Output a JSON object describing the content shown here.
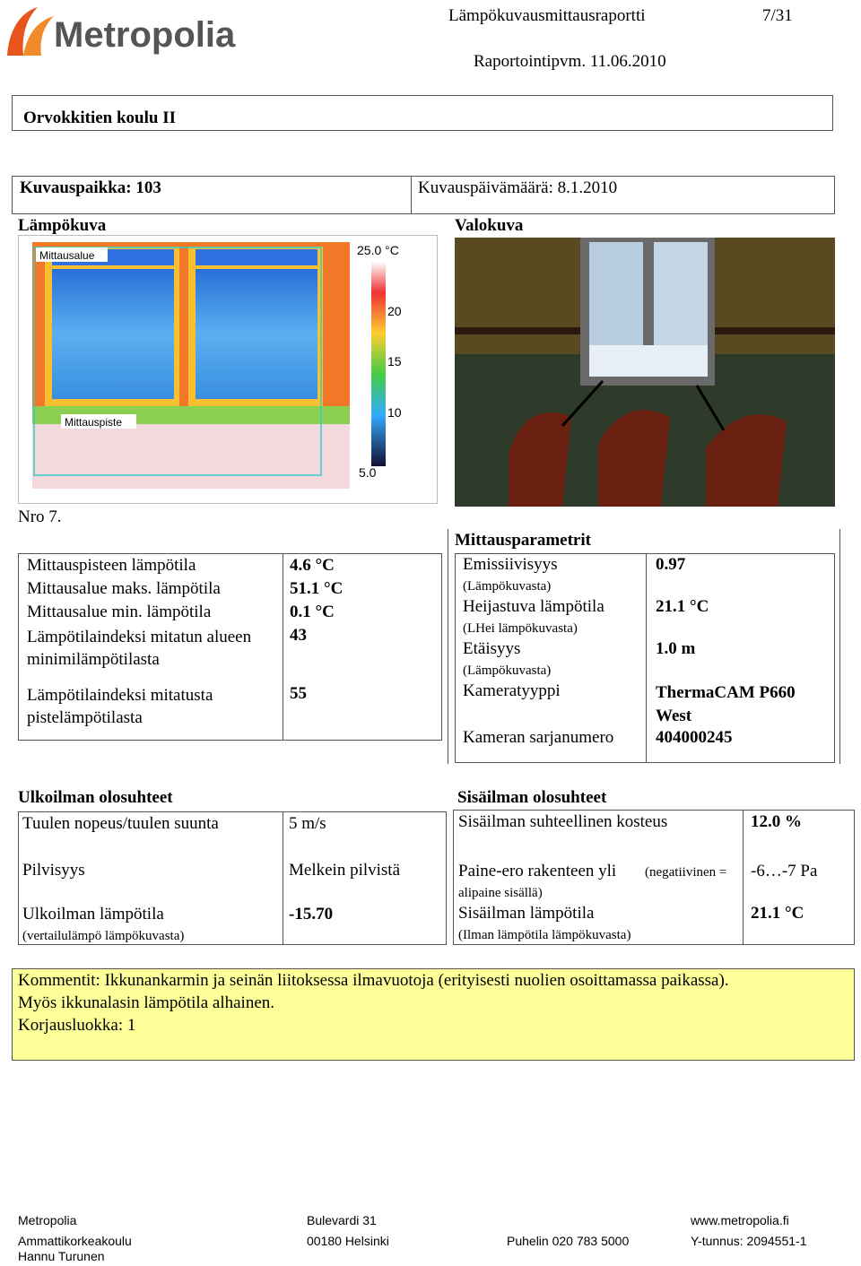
{
  "header": {
    "logo": "Metropolia",
    "title": "Lämpökuvausmittausraportti",
    "page": "7/31",
    "report_date": "Raportointipvm. 11.06.2010"
  },
  "site": "Orvokkitien koulu II",
  "location": "Kuvauspaikka: 103",
  "shoot_date": "Kuvauspäivämäärä: 8.1.2010",
  "thermal": {
    "heading": "Lämpökuva",
    "area_label": "Mittausalue",
    "spot_label": "Mittauspiste",
    "scale": [
      "25.0 °C",
      "20",
      "15",
      "10",
      "5.0"
    ]
  },
  "photo": {
    "heading": "Valokuva"
  },
  "number": "Nro 7.",
  "measurements": [
    [
      "Mittauspisteen lämpötila",
      "4.6 °C"
    ],
    [
      "Mittausalue maks. lämpötila",
      "51.1 °C"
    ],
    [
      "Mittausalue min. lämpötila",
      "0.1 °C"
    ],
    [
      "Lämpötilaindeksi mitatun alueen minimilämpötilasta",
      "43"
    ],
    [
      "Lämpötilaindeksi mitatusta pistelämpötilasta",
      "55"
    ]
  ],
  "parameters": {
    "heading": "Mittausparametrit",
    "rows": [
      {
        "label": "Emissiivisyys",
        "sub": "(Lämpökuvasta)",
        "value": "0.97"
      },
      {
        "label": "Heijastuva lämpötila",
        "sub": "(LHei lämpökuvasta)",
        "value": "21.1 °C"
      },
      {
        "label": "Etäisyys",
        "sub": "(Lämpökuvasta)",
        "value": "1.0 m"
      },
      {
        "label": "Kameratyyppi",
        "value": "ThermaCAM P660 West"
      },
      {
        "label": "Kameran sarjanumero",
        "value": "404000245"
      }
    ]
  },
  "outdoor": {
    "heading": "Ulkoilman olosuhteet",
    "rows": [
      {
        "label": "Tuulen nopeus/tuulen suunta",
        "value": "5 m/s"
      },
      {
        "label": "Pilvisyys",
        "value": "Melkein pilvistä"
      },
      {
        "label": "Ulkoilman lämpötila",
        "sub": "(vertailulämpö lämpökuvasta)",
        "value": "-15.70"
      }
    ]
  },
  "indoor": {
    "heading": "Sisäilman olosuhteet",
    "rows": [
      {
        "label": "Sisäilman suhteellinen kosteus",
        "value": "12.0 %"
      },
      {
        "label": "Paine-ero rakenteen yli",
        "sub": "(negatiivinen = alipaine sisällä)",
        "value": "-6…-7 Pa"
      },
      {
        "label": "Sisäilman lämpötila",
        "sub": "(Ilman lämpötila lämpökuvasta)",
        "value": "21.1 °C"
      }
    ]
  },
  "comments": [
    "Kommentit: Ikkunankarmin ja seinän liitoksessa ilmavuotoja (erityisesti nuolien osoittamassa paikassa).",
    "Myös ikkunalasin lämpötila alhainen.",
    "Korjausluokka: 1"
  ],
  "footer": [
    [
      "Metropolia",
      "Bulevardi 31",
      "",
      "www.metropolia.fi"
    ],
    [
      "Ammattikorkeakoulu",
      "00180 Helsinki",
      "Puhelin 020 783 5000",
      "Y-tunnus: 2094551-1"
    ],
    [
      "Hannu Turunen"
    ]
  ]
}
